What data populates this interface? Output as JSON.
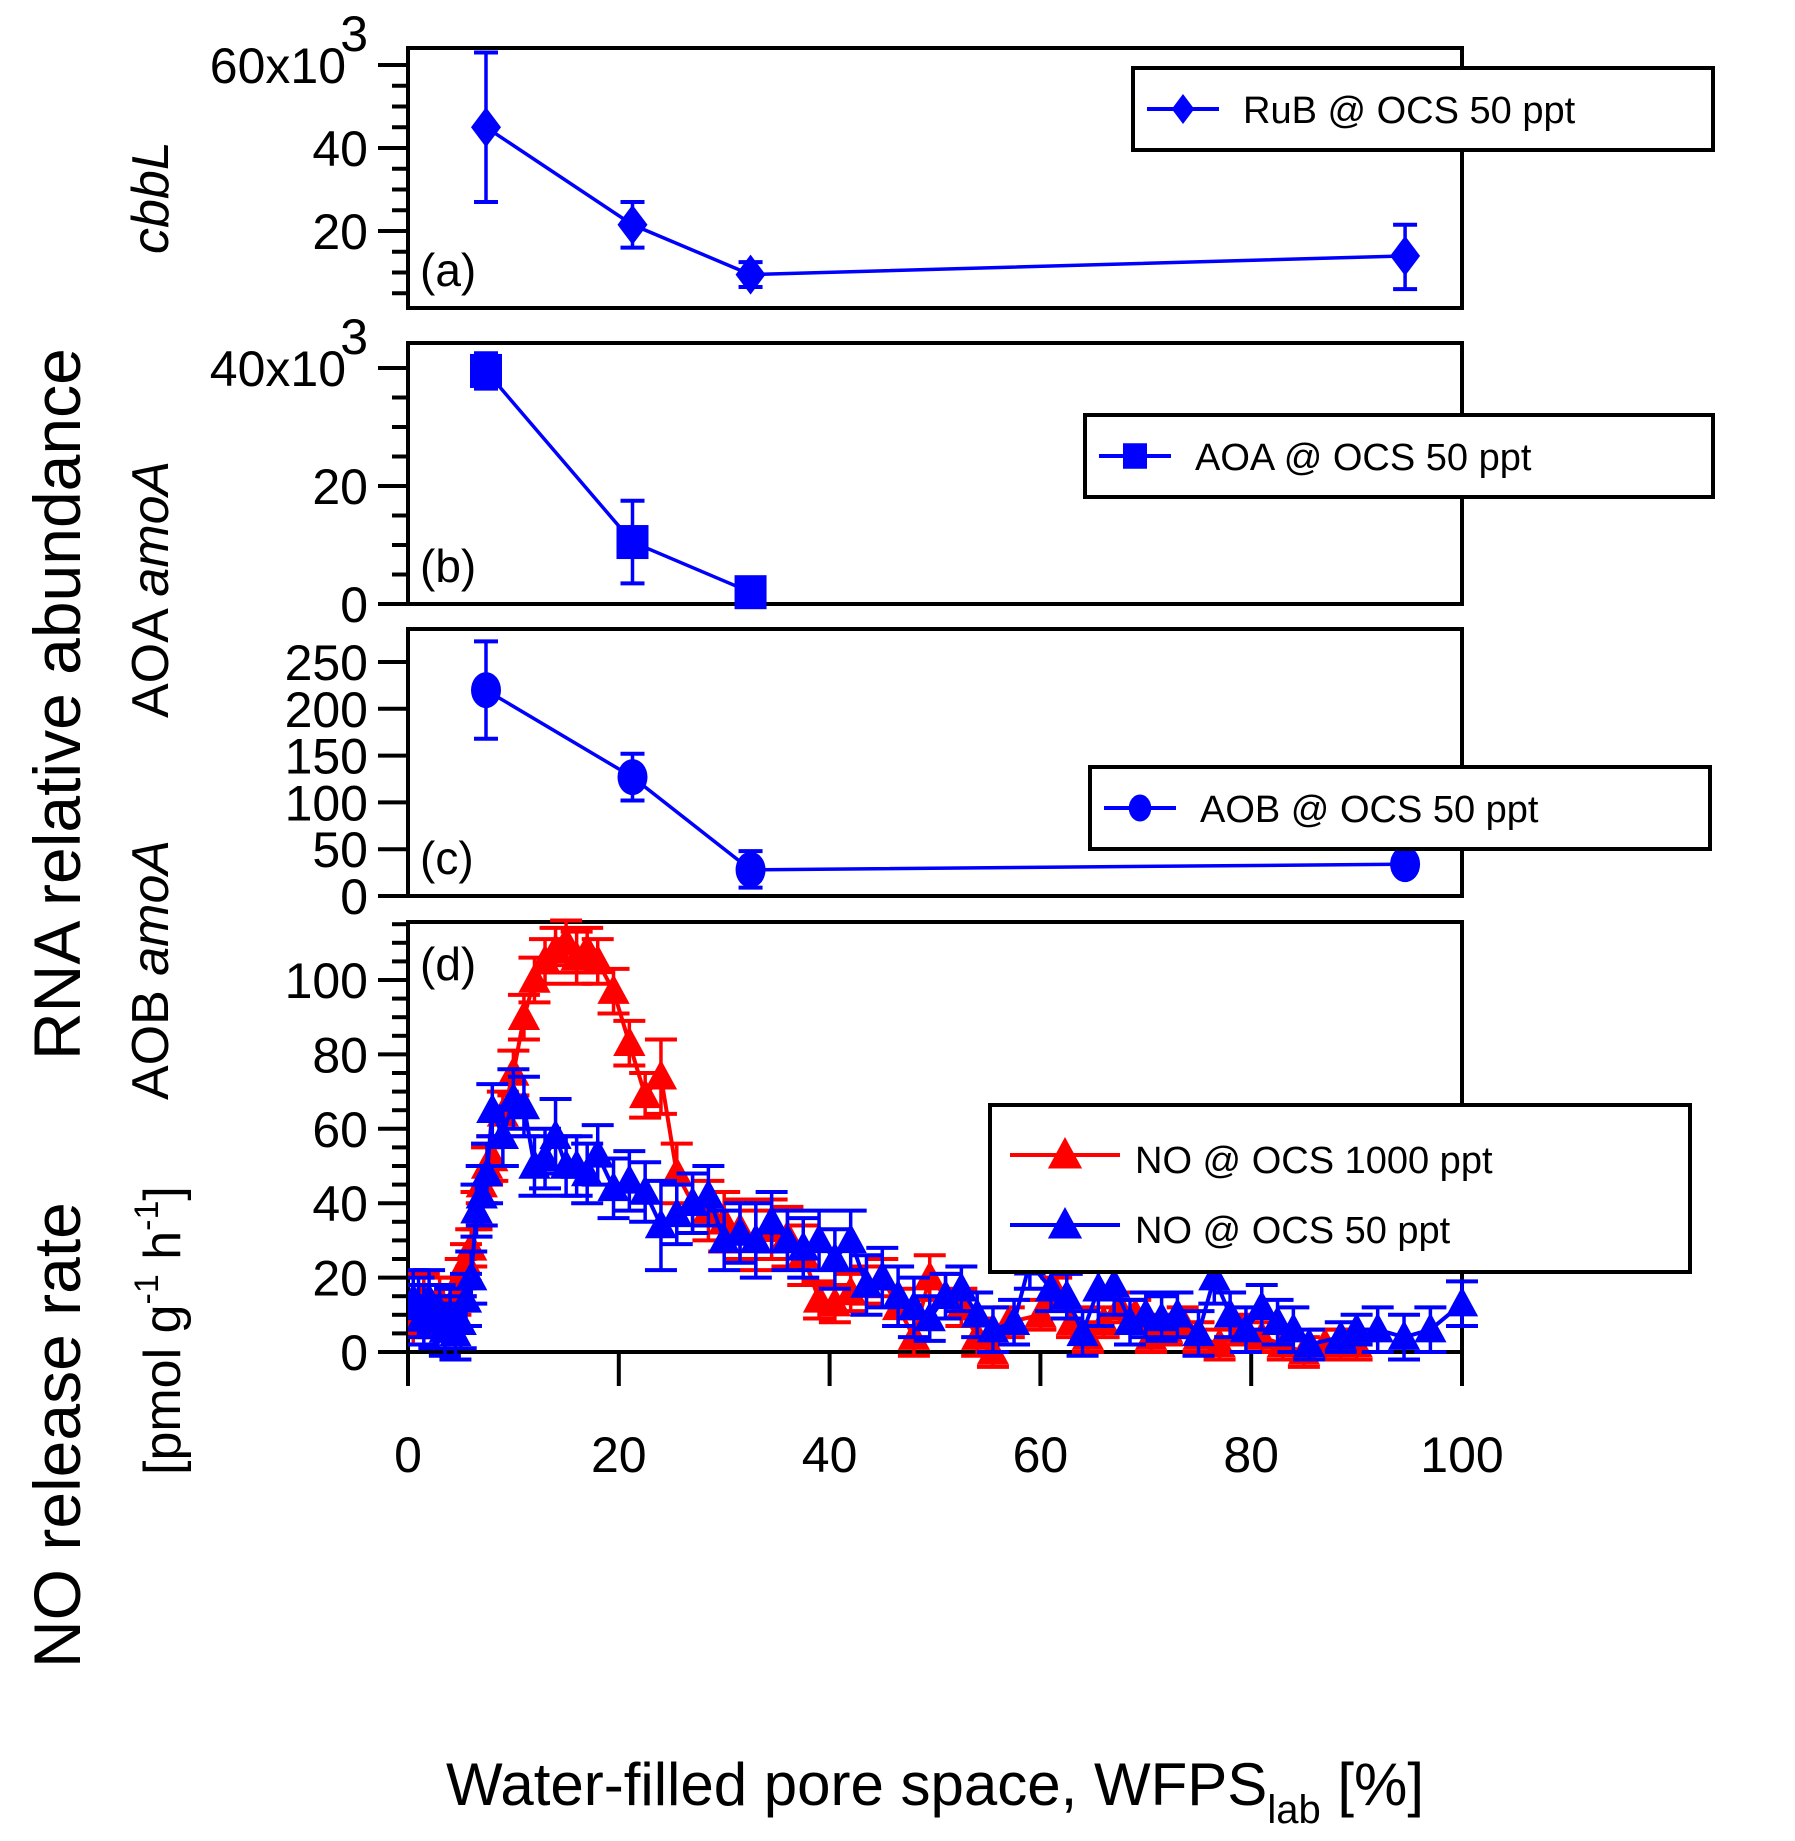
{
  "figure": {
    "shared_ylabel_top": "RNA relative abundance",
    "xlabel_main": "Water-filled pore space, WFPS",
    "xlabel_sub": "lab",
    "xlabel_tail": " [%]"
  },
  "chart_data": [
    {
      "id": "a",
      "type": "line",
      "panel_tag": "(a)",
      "ylabel": "cbbL",
      "ylabel_italic": true,
      "ylim": [
        0,
        62000
      ],
      "yticks": [
        20000,
        40000,
        60000
      ],
      "ytick_labels": [
        "20",
        "40",
        "60x10"
      ],
      "ytick_exponent": "3",
      "xlim": [
        0,
        100
      ],
      "legend": {
        "label": "RuB @ OCS 50 ppt",
        "marker": "diamond",
        "placement": "top-right"
      },
      "series": [
        {
          "name": "RuB @ OCS 50 ppt",
          "color": "#0000ff",
          "marker": "diamond",
          "x": [
            7.4,
            21.3,
            32.5,
            94.6
          ],
          "y": [
            45000,
            21500,
            9500,
            14000
          ],
          "err_low": [
            27000,
            16000,
            6500,
            6000
          ],
          "err_high": [
            63000,
            27000,
            12500,
            21500
          ]
        }
      ]
    },
    {
      "id": "b",
      "type": "line",
      "panel_tag": "(b)",
      "ylabel": "AOA amoA",
      "ylabel_italic_part": "amoA",
      "ylim": [
        0,
        44000
      ],
      "yticks": [
        0,
        20000,
        40000
      ],
      "ytick_labels": [
        "0",
        "20",
        "40x10"
      ],
      "ytick_exponent": "3",
      "xlim": [
        0,
        100
      ],
      "legend": {
        "label": "AOA @ OCS 50 ppt",
        "marker": "square",
        "placement": "top-right"
      },
      "series": [
        {
          "name": "AOA @ OCS 50 ppt",
          "color": "#0000ff",
          "marker": "square",
          "x": [
            7.4,
            21.3,
            32.5
          ],
          "y": [
            39500,
            10500,
            2000
          ],
          "err_low": [
            36500,
            3500,
            1500
          ],
          "err_high": [
            42500,
            17500,
            2500
          ]
        }
      ]
    },
    {
      "id": "c",
      "type": "line",
      "panel_tag": "(c)",
      "ylabel": "AOB amoA",
      "ylabel_italic_part": "amoA",
      "ylim": [
        0,
        285
      ],
      "yticks": [
        0,
        50,
        100,
        150,
        200,
        250
      ],
      "ytick_labels": [
        "0",
        "50",
        "100",
        "150",
        "200",
        "250"
      ],
      "xlim": [
        0,
        100
      ],
      "legend": {
        "label": "AOB @ OCS 50 ppt",
        "marker": "circle",
        "placement": "top-right"
      },
      "series": [
        {
          "name": "AOB @ OCS 50 ppt",
          "color": "#0000ff",
          "marker": "circle",
          "x": [
            7.4,
            21.3,
            32.5,
            94.6
          ],
          "y": [
            220,
            127,
            28,
            34
          ],
          "err_low": [
            168,
            102,
            9,
            28
          ],
          "err_high": [
            272,
            152,
            48,
            40
          ]
        }
      ]
    },
    {
      "id": "d",
      "type": "line",
      "panel_tag": "(d)",
      "ylabel_line1": "NO release rate",
      "ylabel_line2": "[pmol g",
      "ylabel_sup1": "-1",
      "ylabel_mid": " h",
      "ylabel_sup2": "-1",
      "ylabel_end": "]",
      "ylim": [
        0,
        115
      ],
      "yticks": [
        0,
        20,
        40,
        60,
        80,
        100
      ],
      "ytick_labels": [
        "0",
        "20",
        "40",
        "60",
        "80",
        "100"
      ],
      "xlim": [
        0,
        100
      ],
      "xticks": [
        0,
        20,
        40,
        60,
        80,
        100
      ],
      "xtick_labels": [
        "0",
        "20",
        "40",
        "60",
        "80",
        "100"
      ],
      "legend": {
        "placement": "top-right"
      },
      "series": [
        {
          "name": "NO @ OCS 1000 ppt",
          "color": "#ff0000",
          "marker": "triangle",
          "x": [
            0.5,
            1.0,
            1.5,
            2.0,
            2.5,
            3.0,
            3.5,
            4.0,
            4.5,
            5.0,
            5.5,
            6.0,
            6.5,
            7.0,
            7.5,
            8.0,
            9.0,
            10.0,
            11.0,
            12.0,
            13.0,
            14.0,
            15.0,
            16.0,
            17.0,
            18.0,
            19.5,
            21.0,
            22.5,
            24.0,
            25.5,
            27.0,
            28.5,
            30.0,
            31.5,
            33.0,
            34.5,
            36.0,
            37.5,
            39.0,
            40.5,
            42.0,
            43.5,
            45.0,
            46.5,
            48.0,
            49.5,
            51.0,
            52.5,
            54.0,
            55.5,
            57.0,
            60.0,
            61.5,
            63.0,
            64.5,
            66.0,
            67.5,
            69.0,
            70.5,
            72.0,
            73.5,
            75.0,
            77.0,
            79.0,
            81.0,
            83.0,
            85.0,
            87.0,
            88.5,
            90.0
          ],
          "y": [
            8,
            12,
            15,
            10,
            9,
            14,
            10,
            12,
            15,
            20,
            24,
            28,
            38,
            45,
            50,
            52,
            64,
            75,
            90,
            100,
            105,
            108,
            110,
            106,
            108,
            105,
            97,
            83,
            69,
            74,
            48,
            40,
            38,
            35,
            33,
            30,
            33,
            31,
            26,
            14,
            13,
            16,
            18,
            20,
            12,
            4,
            20,
            15,
            12,
            4,
            0,
            8,
            10,
            16,
            8,
            4,
            8,
            12,
            10,
            4,
            6,
            8,
            4,
            2,
            6,
            4,
            2,
            0,
            2,
            2,
            2
          ],
          "err": [
            6,
            6,
            6,
            6,
            5,
            6,
            5,
            5,
            5,
            5,
            5,
            5,
            5,
            5,
            5,
            6,
            6,
            6,
            6,
            6,
            6,
            6,
            6,
            7,
            6,
            6,
            6,
            6,
            6,
            10,
            8,
            8,
            8,
            8,
            8,
            8,
            8,
            8,
            8,
            5,
            5,
            5,
            5,
            5,
            5,
            5,
            6,
            6,
            5,
            5,
            4,
            4,
            4,
            4,
            4,
            4,
            4,
            4,
            4,
            4,
            4,
            4,
            4,
            4,
            4,
            4,
            4,
            4,
            4,
            4,
            4
          ]
        },
        {
          "name": "NO @ OCS 50 ppt",
          "color": "#0000ff",
          "marker": "triangle",
          "x": [
            0.5,
            1.0,
            1.5,
            2.0,
            2.5,
            3.0,
            3.5,
            4.0,
            4.5,
            5.0,
            5.5,
            6.0,
            6.5,
            7.0,
            7.5,
            8.0,
            9.0,
            10.0,
            11.0,
            12.0,
            13.0,
            14.0,
            15.0,
            16.0,
            17.0,
            18.0,
            19.5,
            21.0,
            22.5,
            24.0,
            25.5,
            27.0,
            28.5,
            30.0,
            31.5,
            33.0,
            34.5,
            36.0,
            37.5,
            39.0,
            40.5,
            42.0,
            43.5,
            45.0,
            46.5,
            48.0,
            49.5,
            51.0,
            52.5,
            54.0,
            55.5,
            57.5,
            59.0,
            61.0,
            62.5,
            64.0,
            65.5,
            67.0,
            68.5,
            70.0,
            71.5,
            73.0,
            75.0,
            76.5,
            78.0,
            79.5,
            81.0,
            82.5,
            84.0,
            85.5,
            88.5,
            90.0,
            92.0,
            94.5,
            97.0,
            100.0
          ],
          "y": [
            14,
            12,
            10,
            14,
            8,
            11,
            6,
            10,
            5,
            8,
            14,
            20,
            38,
            42,
            48,
            65,
            58,
            68,
            66,
            50,
            52,
            58,
            50,
            50,
            48,
            53,
            44,
            46,
            43,
            34,
            37,
            40,
            42,
            30,
            32,
            30,
            35,
            30,
            28,
            30,
            25,
            30,
            18,
            20,
            15,
            12,
            9,
            15,
            17,
            10,
            6,
            8,
            24,
            17,
            15,
            5,
            17,
            18,
            8,
            10,
            9,
            10,
            5,
            20,
            10,
            6,
            12,
            8,
            6,
            2,
            4,
            6,
            6,
            4,
            6,
            13
          ],
          "err": [
            8,
            8,
            8,
            8,
            7,
            7,
            7,
            7,
            7,
            7,
            7,
            7,
            7,
            8,
            8,
            7,
            8,
            8,
            8,
            8,
            8,
            10,
            8,
            8,
            8,
            8,
            8,
            8,
            8,
            12,
            8,
            8,
            8,
            8,
            8,
            10,
            8,
            8,
            8,
            8,
            8,
            8,
            8,
            8,
            8,
            8,
            6,
            6,
            6,
            6,
            6,
            6,
            7,
            6,
            6,
            6,
            10,
            8,
            6,
            6,
            6,
            6,
            6,
            7,
            6,
            6,
            6,
            6,
            6,
            4,
            4,
            4,
            6,
            6,
            6,
            6
          ]
        }
      ]
    }
  ]
}
